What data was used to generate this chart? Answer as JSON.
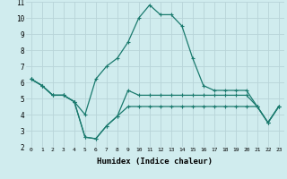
{
  "xlabel": "Humidex (Indice chaleur)",
  "x": [
    0,
    1,
    2,
    3,
    4,
    5,
    6,
    7,
    8,
    9,
    10,
    11,
    12,
    13,
    14,
    15,
    16,
    17,
    18,
    19,
    20,
    21,
    22,
    23
  ],
  "line1": [
    6.2,
    5.8,
    5.2,
    5.2,
    4.8,
    4.0,
    6.2,
    7.0,
    7.5,
    8.5,
    10.0,
    10.8,
    10.2,
    10.2,
    9.5,
    7.5,
    5.8,
    5.5,
    5.5,
    5.5,
    5.5,
    4.5,
    3.5,
    4.5
  ],
  "line2": [
    6.2,
    5.8,
    5.2,
    5.2,
    4.8,
    2.6,
    2.5,
    3.3,
    3.9,
    5.5,
    5.2,
    5.2,
    5.2,
    5.2,
    5.2,
    5.2,
    5.2,
    5.2,
    5.2,
    5.2,
    5.2,
    4.5,
    3.5,
    4.5
  ],
  "line3": [
    6.2,
    5.8,
    5.2,
    5.2,
    4.8,
    2.6,
    2.5,
    3.3,
    3.9,
    4.5,
    4.5,
    4.5,
    4.5,
    4.5,
    4.5,
    4.5,
    4.5,
    4.5,
    4.5,
    4.5,
    4.5,
    4.5,
    3.5,
    4.5
  ],
  "ylim": [
    2,
    11
  ],
  "xlim": [
    -0.5,
    23.5
  ],
  "yticks": [
    2,
    3,
    4,
    5,
    6,
    7,
    8,
    9,
    10,
    11
  ],
  "xticks": [
    0,
    1,
    2,
    3,
    4,
    5,
    6,
    7,
    8,
    9,
    10,
    11,
    12,
    13,
    14,
    15,
    16,
    17,
    18,
    19,
    20,
    21,
    22,
    23
  ],
  "line_color": "#1a7a6e",
  "bg_color": "#d0ecee",
  "grid_color": "#b8d4d8"
}
